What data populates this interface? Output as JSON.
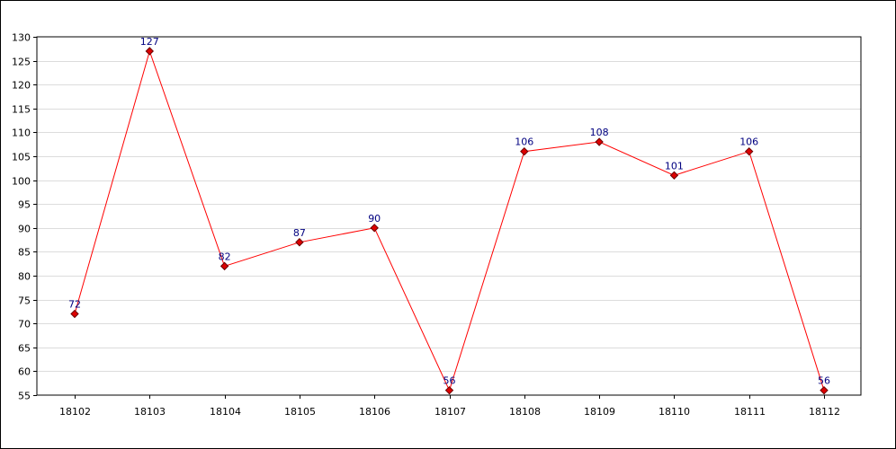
{
  "chart_data": {
    "type": "line",
    "title": "",
    "xlabel": "",
    "ylabel": "",
    "categories": [
      "18102",
      "18103",
      "18104",
      "18105",
      "18106",
      "18107",
      "18108",
      "18109",
      "18110",
      "18111",
      "18112"
    ],
    "series": [
      {
        "values": [
          72,
          127,
          82,
          87,
          90,
          56,
          106,
          108,
          101,
          106,
          56
        ]
      }
    ],
    "data_labels": [
      "72",
      "127",
      "82",
      "87",
      "90",
      "56",
      "106",
      "108",
      "101",
      "106",
      "56"
    ],
    "ylim": [
      55,
      130
    ],
    "y_ticks": [
      "55",
      "60",
      "65",
      "70",
      "75",
      "80",
      "85",
      "90",
      "95",
      "100",
      "105",
      "110",
      "115",
      "120",
      "125",
      "130"
    ],
    "grid": "horizontal",
    "legend": "none",
    "colors": {
      "line": "#ff0000",
      "marker_fill": "#dd0000",
      "marker_stroke": "#660000",
      "label_text": "#000080",
      "grid": "#dcdcdc",
      "axis": "#000000"
    }
  }
}
